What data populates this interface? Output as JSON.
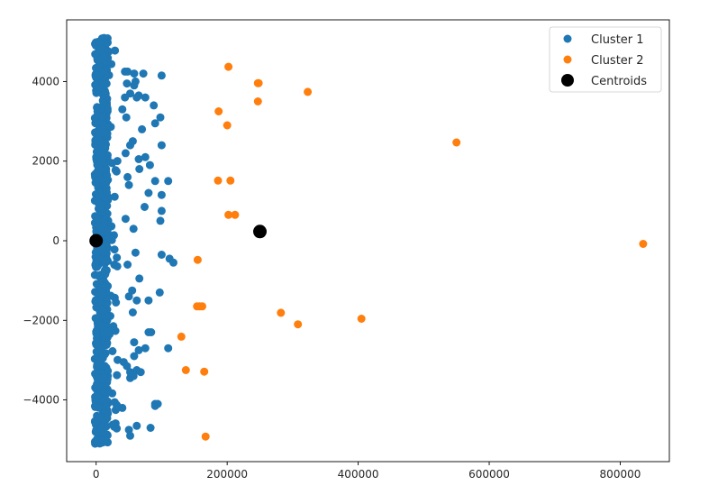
{
  "chart_data": {
    "type": "scatter",
    "title": "",
    "xlabel": "",
    "ylabel": "",
    "xlim": [
      -45000,
      875000
    ],
    "ylim": [
      -5550,
      5550
    ],
    "xticks": [
      0,
      200000,
      400000,
      600000,
      800000
    ],
    "xtick_labels": [
      "0",
      "200000",
      "400000",
      "600000",
      "800000"
    ],
    "yticks": [
      -4000,
      -2000,
      0,
      2000,
      4000
    ],
    "ytick_labels": [
      "−4000",
      "−2000",
      "0",
      "2000",
      "4000"
    ],
    "grid": false,
    "legend_position": "top-right",
    "series": [
      {
        "name": "Cluster 1",
        "color": "#1f77b4",
        "x": [
          44000,
          48000,
          58000,
          60000,
          72000,
          100000,
          47000,
          52000,
          58000,
          65000,
          44000,
          62000,
          75000,
          88000,
          98000,
          40000,
          46000,
          70000,
          90000,
          52000,
          56000,
          100000,
          65000,
          45000,
          75000,
          82000,
          110000,
          66000,
          90000,
          48000,
          100000,
          50000,
          80000,
          100000,
          74000,
          98000,
          57000,
          45000,
          100000,
          112000,
          118000,
          48000,
          60000,
          66000,
          55000,
          97000,
          62000,
          50000,
          80000,
          56000,
          84000,
          80000,
          75000,
          58000,
          65000,
          58000,
          110000,
          42000,
          47000,
          52000,
          57000,
          62000,
          52000,
          68000,
          90000,
          94000,
          90000,
          40000,
          83000,
          50000,
          62000,
          52000
        ],
        "y": [
          4250,
          4250,
          4200,
          4000,
          4200,
          4150,
          3950,
          3700,
          3900,
          3650,
          3600,
          3600,
          3600,
          3400,
          3100,
          3300,
          3100,
          2800,
          2950,
          2400,
          2500,
          2400,
          2050,
          2200,
          2100,
          1900,
          1500,
          1800,
          1500,
          1600,
          1150,
          1400,
          1200,
          750,
          850,
          500,
          300,
          550,
          -350,
          -450,
          -550,
          -600,
          -300,
          -950,
          -1250,
          -1300,
          -1500,
          -1400,
          -1500,
          -1800,
          -2300,
          -2300,
          -2700,
          -2550,
          -2750,
          -2900,
          -2700,
          -3050,
          -3150,
          -3450,
          -3400,
          -3250,
          -3300,
          -3300,
          -4100,
          -4100,
          -4150,
          -4200,
          -4700,
          -4750,
          -4650,
          -4900
        ]
      },
      {
        "name": "Cluster 2",
        "color": "#ff7f0e",
        "x": [
          202000,
          248000,
          247000,
          323000,
          187000,
          247000,
          200000,
          550000,
          186000,
          205000,
          202000,
          212000,
          835000,
          155000,
          154000,
          158000,
          162000,
          282000,
          308000,
          405000,
          130000,
          137000,
          165000,
          167000
        ],
        "y": [
          4370,
          3960,
          3960,
          3740,
          3250,
          3500,
          2900,
          2470,
          1510,
          1510,
          650,
          650,
          -80,
          -480,
          -1650,
          -1650,
          -1650,
          -1810,
          -2100,
          -1960,
          -2410,
          -3250,
          -3290,
          -4920
        ]
      },
      {
        "name": "Centroids",
        "color": "#000000",
        "x": [
          0,
          250000
        ],
        "y": [
          0,
          230
        ]
      }
    ]
  }
}
